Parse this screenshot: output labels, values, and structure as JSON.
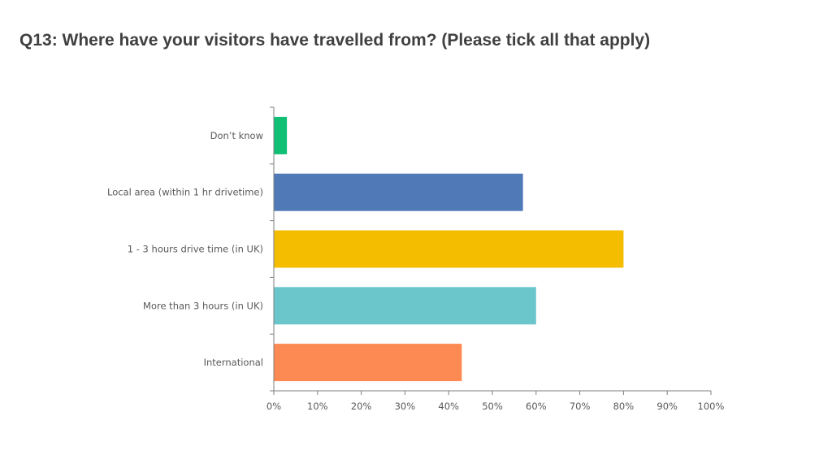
{
  "title": "Q13: Where have your visitors have travelled from? (Please tick all that apply)",
  "chart_data": {
    "type": "bar",
    "orientation": "horizontal",
    "categories": [
      "Don’t know",
      "Local area (within 1 hr drivetime)",
      "1 - 3 hours drive time (in UK)",
      "More than 3 hours (in UK)",
      "International"
    ],
    "values": [
      3,
      57,
      80,
      60,
      43
    ],
    "colors": [
      "#0fbf74",
      "#4f7ab7",
      "#f5bd00",
      "#6bc6cc",
      "#fd8a52"
    ],
    "xlim": [
      0,
      100
    ],
    "x_ticks": [
      "0%",
      "10%",
      "20%",
      "30%",
      "40%",
      "50%",
      "60%",
      "70%",
      "80%",
      "90%",
      "100%"
    ],
    "value_unit": "%",
    "grid": false,
    "legend": "none"
  }
}
